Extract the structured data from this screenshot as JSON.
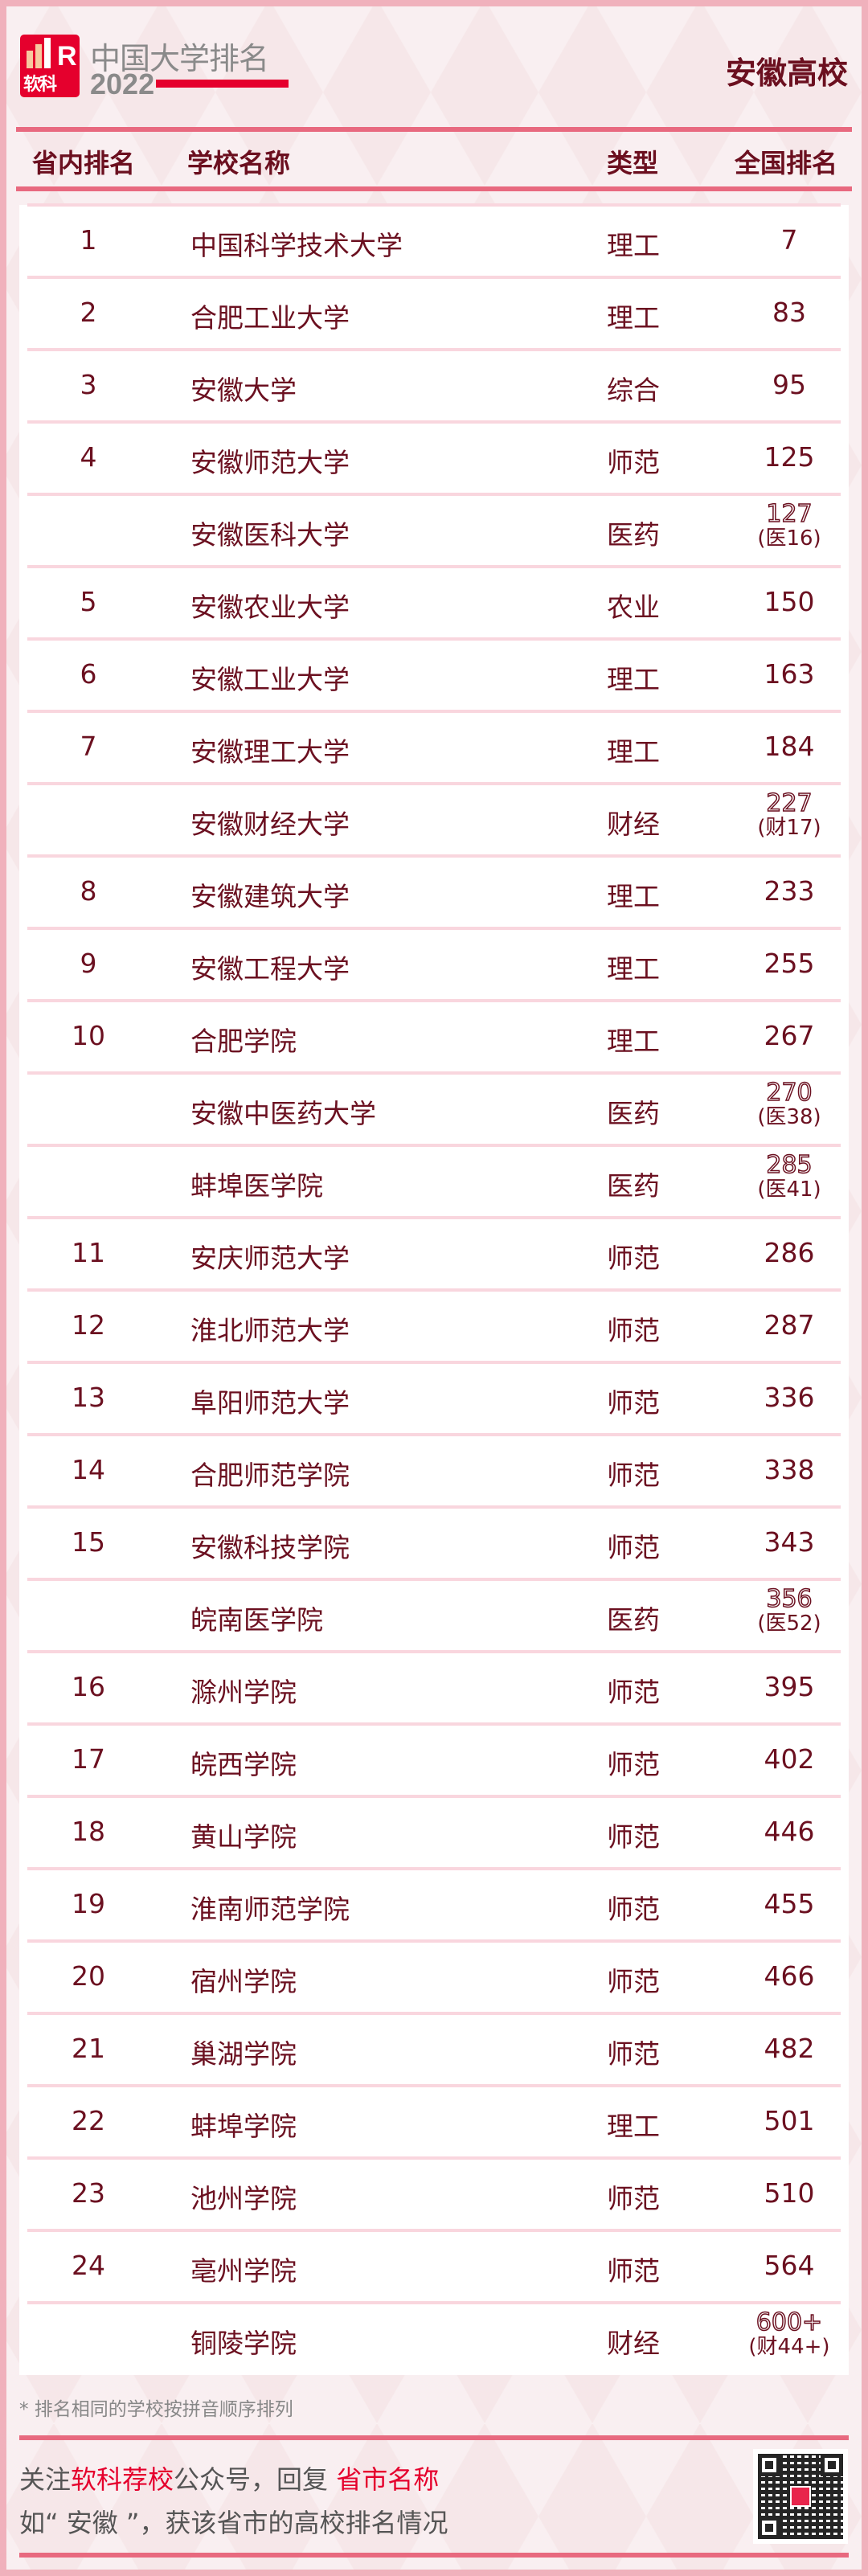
{
  "header": {
    "logo_text": "软科",
    "brand": "中国大学排名",
    "year": "2022",
    "region_title": "安徽高校"
  },
  "columns": {
    "rank": "省内排名",
    "name": "学校名称",
    "type": "类型",
    "national": "全国排名"
  },
  "rows": [
    {
      "rank": "1",
      "name": "中国科学技术大学",
      "type": "理工",
      "national": "7"
    },
    {
      "rank": "2",
      "name": "合肥工业大学",
      "type": "理工",
      "national": "83"
    },
    {
      "rank": "3",
      "name": "安徽大学",
      "type": "综合",
      "national": "95"
    },
    {
      "rank": "4",
      "name": "安徽师范大学",
      "type": "师范",
      "national": "125"
    },
    {
      "rank": "",
      "name": "安徽医科大学",
      "type": "医药",
      "national": "127",
      "sub": "(医16)"
    },
    {
      "rank": "5",
      "name": "安徽农业大学",
      "type": "农业",
      "national": "150"
    },
    {
      "rank": "6",
      "name": "安徽工业大学",
      "type": "理工",
      "national": "163"
    },
    {
      "rank": "7",
      "name": "安徽理工大学",
      "type": "理工",
      "national": "184"
    },
    {
      "rank": "",
      "name": "安徽财经大学",
      "type": "财经",
      "national": "227",
      "sub": "(财17)"
    },
    {
      "rank": "8",
      "name": "安徽建筑大学",
      "type": "理工",
      "national": "233"
    },
    {
      "rank": "9",
      "name": "安徽工程大学",
      "type": "理工",
      "national": "255"
    },
    {
      "rank": "10",
      "name": "合肥学院",
      "type": "理工",
      "national": "267"
    },
    {
      "rank": "",
      "name": "安徽中医药大学",
      "type": "医药",
      "national": "270",
      "sub": "(医38)"
    },
    {
      "rank": "",
      "name": "蚌埠医学院",
      "type": "医药",
      "national": "285",
      "sub": "(医41)"
    },
    {
      "rank": "11",
      "name": "安庆师范大学",
      "type": "师范",
      "national": "286"
    },
    {
      "rank": "12",
      "name": "淮北师范大学",
      "type": "师范",
      "national": "287"
    },
    {
      "rank": "13",
      "name": "阜阳师范大学",
      "type": "师范",
      "national": "336"
    },
    {
      "rank": "14",
      "name": "合肥师范学院",
      "type": "师范",
      "national": "338"
    },
    {
      "rank": "15",
      "name": "安徽科技学院",
      "type": "师范",
      "national": "343"
    },
    {
      "rank": "",
      "name": "皖南医学院",
      "type": "医药",
      "national": "356",
      "sub": "(医52)"
    },
    {
      "rank": "16",
      "name": "滁州学院",
      "type": "师范",
      "national": "395"
    },
    {
      "rank": "17",
      "name": "皖西学院",
      "type": "师范",
      "national": "402"
    },
    {
      "rank": "18",
      "name": "黄山学院",
      "type": "师范",
      "national": "446"
    },
    {
      "rank": "19",
      "name": "淮南师范学院",
      "type": "师范",
      "national": "455"
    },
    {
      "rank": "20",
      "name": "宿州学院",
      "type": "师范",
      "national": "466"
    },
    {
      "rank": "21",
      "name": "巢湖学院",
      "type": "师范",
      "national": "482"
    },
    {
      "rank": "22",
      "name": "蚌埠学院",
      "type": "理工",
      "national": "501"
    },
    {
      "rank": "23",
      "name": "池州学院",
      "type": "师范",
      "national": "510"
    },
    {
      "rank": "24",
      "name": "亳州学院",
      "type": "师范",
      "national": "564"
    },
    {
      "rank": "",
      "name": "铜陵学院",
      "type": "财经",
      "national": "600+",
      "sub": "(财44+)"
    }
  ],
  "footer": {
    "note": "* 排名相同的学校按拼音顺序排列",
    "line1_a": "关注",
    "line1_hl1": "软科荐校",
    "line1_b": "公众号，回复 ",
    "line1_hl2": "省市名称",
    "line2": "如“ 安徽 ”，获该省市的高校排名情况",
    "qr_icon": "qr-code"
  },
  "colors": {
    "accent": "#e5002d",
    "text": "#6b1020",
    "line": "#e8697f"
  }
}
